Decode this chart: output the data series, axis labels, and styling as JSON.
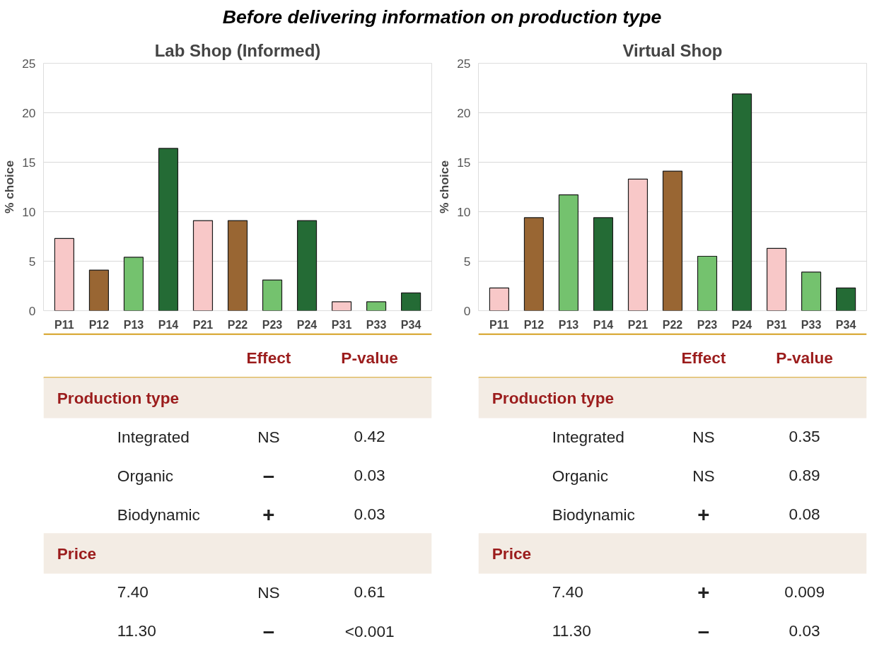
{
  "chart_data": [
    {
      "type": "bar",
      "title": "Lab Shop (Informed)",
      "annotations": [
        "Before delivering information on production type"
      ],
      "ylabel": "% choice",
      "categories": [
        "P11",
        "P12",
        "P13",
        "P14",
        "P21",
        "P22",
        "P23",
        "P24",
        "P31",
        "P33",
        "P34"
      ],
      "values": [
        7.3,
        4.1,
        5.4,
        16.4,
        9.1,
        9.1,
        3.1,
        9.1,
        0.9,
        0.9,
        1.8
      ],
      "colors": [
        "#f8c8c8",
        "#996633",
        "#74c26e",
        "#246b35",
        "#f8c8c8",
        "#996633",
        "#74c26e",
        "#246b35",
        "#f8c8c8",
        "#74c26e",
        "#246b35"
      ],
      "ylim": [
        0,
        25
      ],
      "yticks": [
        0,
        5,
        10,
        15,
        20,
        25
      ],
      "grid": "y"
    },
    {
      "type": "bar",
      "title": "Virtual Shop",
      "ylabel": "% choice",
      "categories": [
        "P11",
        "P12",
        "P13",
        "P14",
        "P21",
        "P22",
        "P23",
        "P24",
        "P31",
        "P33",
        "P34"
      ],
      "values": [
        2.3,
        9.4,
        11.7,
        9.4,
        13.3,
        14.1,
        5.5,
        21.9,
        6.3,
        3.9,
        2.3
      ],
      "colors": [
        "#f8c8c8",
        "#996633",
        "#74c26e",
        "#246b35",
        "#f8c8c8",
        "#996633",
        "#74c26e",
        "#246b35",
        "#f8c8c8",
        "#74c26e",
        "#246b35"
      ],
      "ylim": [
        0,
        25
      ],
      "yticks": [
        0,
        5,
        10,
        15,
        20,
        25
      ],
      "grid": "y"
    },
    {
      "type": "other",
      "annotations": [
        "Effect",
        "P-value",
        "Production type",
        "Integrated",
        "NS",
        "0.42",
        "Organic",
        "–",
        "0.03",
        "Biodynamic",
        "+",
        "0.03",
        "Price",
        "7.40",
        "NS",
        "0.61",
        "11.30",
        "–",
        "<0.001"
      ]
    },
    {
      "type": "other",
      "annotations": [
        "Effect",
        "P-value",
        "Production type",
        "Integrated",
        "NS",
        "0.35",
        "Organic",
        "NS",
        "0.89",
        "Biodynamic",
        "+",
        "0.08",
        "Price",
        "7.40",
        "+",
        "0.009",
        "11.30",
        "–",
        "0.03"
      ]
    }
  ]
}
